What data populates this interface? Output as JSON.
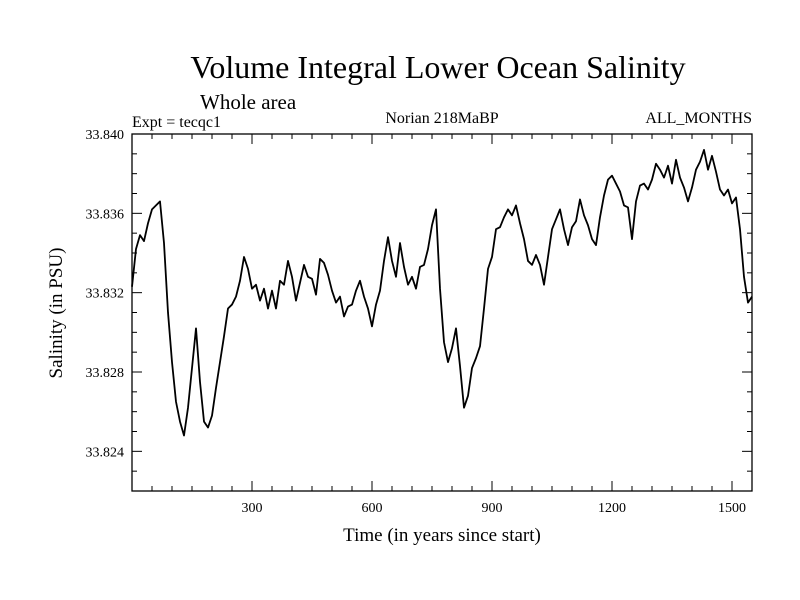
{
  "chart_data": {
    "type": "line",
    "title": "Volume Integral Lower Ocean Salinity",
    "subtitle": "Whole area",
    "left_label": "Expt = tecqc1",
    "center_label": "Norian 218MaBP",
    "right_label": "ALL_MONTHS",
    "xlabel": "Time (in years since start)",
    "ylabel": "Salinity (in PSU)",
    "xlim": [
      0,
      1550
    ],
    "ylim": [
      33.822,
      33.84
    ],
    "x_ticks": [
      300,
      600,
      900,
      1200,
      1500
    ],
    "x_tick_labels": [
      "300",
      "600",
      "900",
      "1200",
      "1500"
    ],
    "y_ticks": [
      33.824,
      33.828,
      33.832,
      33.836,
      33.84
    ],
    "y_tick_labels": [
      "33.824",
      "33.828",
      "33.832",
      "33.836",
      "33.840"
    ],
    "grid": false,
    "series": [
      {
        "name": "Salinity",
        "color": "#000000",
        "x": [
          0,
          10,
          20,
          30,
          40,
          50,
          60,
          70,
          80,
          90,
          100,
          110,
          120,
          130,
          140,
          150,
          160,
          170,
          180,
          190,
          200,
          210,
          220,
          230,
          240,
          250,
          260,
          270,
          280,
          290,
          300,
          310,
          320,
          330,
          340,
          350,
          360,
          370,
          380,
          390,
          400,
          410,
          420,
          430,
          440,
          450,
          460,
          470,
          480,
          490,
          500,
          510,
          520,
          530,
          540,
          550,
          560,
          570,
          580,
          590,
          600,
          610,
          620,
          630,
          640,
          650,
          660,
          670,
          680,
          690,
          700,
          710,
          720,
          730,
          740,
          750,
          760,
          770,
          780,
          790,
          800,
          810,
          820,
          830,
          840,
          850,
          860,
          870,
          880,
          890,
          900,
          910,
          920,
          930,
          940,
          950,
          960,
          970,
          980,
          990,
          1000,
          1010,
          1020,
          1030,
          1040,
          1050,
          1060,
          1070,
          1080,
          1090,
          1100,
          1110,
          1120,
          1130,
          1140,
          1150,
          1160,
          1170,
          1180,
          1190,
          1200,
          1210,
          1220,
          1230,
          1240,
          1250,
          1260,
          1270,
          1280,
          1290,
          1300,
          1310,
          1320,
          1330,
          1340,
          1350,
          1360,
          1370,
          1380,
          1390,
          1400,
          1410,
          1420,
          1430,
          1440,
          1450,
          1460,
          1470,
          1480,
          1490,
          1500,
          1510,
          1520,
          1530,
          1540,
          1550
        ],
        "values": [
          33.8323,
          33.8342,
          33.8349,
          33.8346,
          33.8355,
          33.8362,
          33.8364,
          33.8366,
          33.8345,
          33.831,
          33.8285,
          33.8265,
          33.8255,
          33.8248,
          33.8262,
          33.8282,
          33.8302,
          33.8275,
          33.8255,
          33.8252,
          33.8258,
          33.8272,
          33.8285,
          33.8298,
          33.8312,
          33.8314,
          33.8318,
          33.8326,
          33.8338,
          33.8332,
          33.8322,
          33.8324,
          33.8316,
          33.8322,
          33.8312,
          33.8321,
          33.8312,
          33.8326,
          33.8324,
          33.8336,
          33.8328,
          33.8316,
          33.8325,
          33.8334,
          33.8328,
          33.8327,
          33.8319,
          33.8337,
          33.8335,
          33.8329,
          33.8321,
          33.8315,
          33.8318,
          33.8308,
          33.8313,
          33.8314,
          33.8321,
          33.8326,
          33.8318,
          33.8312,
          33.8303,
          33.8314,
          33.8321,
          33.8336,
          33.8348,
          33.8336,
          33.8328,
          33.8345,
          33.8333,
          33.8324,
          33.8328,
          33.8322,
          33.8333,
          33.8334,
          33.8342,
          33.8354,
          33.8362,
          33.8322,
          33.8295,
          33.8285,
          33.8292,
          33.8302,
          33.8283,
          33.8262,
          33.8268,
          33.8282,
          33.8287,
          33.8293,
          33.8312,
          33.8332,
          33.8338,
          33.8352,
          33.8353,
          33.8358,
          33.8362,
          33.8359,
          33.8364,
          33.8355,
          33.8347,
          33.8336,
          33.8334,
          33.8339,
          33.8334,
          33.8324,
          33.8338,
          33.8352,
          33.8357,
          33.8362,
          33.8352,
          33.8344,
          33.8353,
          33.8356,
          33.8367,
          33.8359,
          33.8354,
          33.8347,
          33.8344,
          33.8358,
          33.8369,
          33.8377,
          33.8379,
          33.8375,
          33.8371,
          33.8364,
          33.8363,
          33.8347,
          33.8366,
          33.8374,
          33.8375,
          33.8372,
          33.8377,
          33.8385,
          33.8382,
          33.8378,
          33.8384,
          33.8375,
          33.8387,
          33.8378,
          33.8373,
          33.8366,
          33.8373,
          33.8382,
          33.8386,
          33.8392,
          33.8382,
          33.8389,
          33.8381,
          33.8372,
          33.8369,
          33.8372,
          33.8365,
          33.8368,
          33.8352,
          33.8328,
          33.8315,
          33.8318
        ]
      }
    ]
  }
}
